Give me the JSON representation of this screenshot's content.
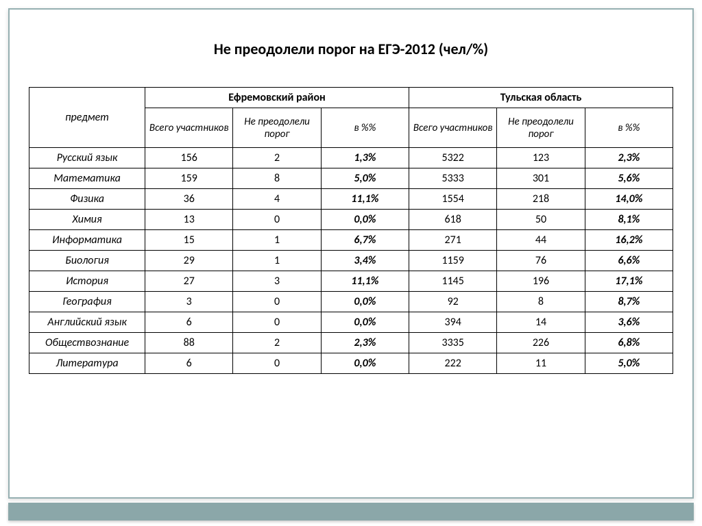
{
  "title": "Не преодолели порог на ЕГЭ-2012 (чел/%)",
  "columns": {
    "subject": "предмет",
    "group1": "Ефремовский район",
    "group2": "Тульская область",
    "total": "Всего участников",
    "failed": "Не преодолели порог",
    "pct": "в %%"
  },
  "rows": [
    {
      "s": "Русский язык",
      "a1": "156",
      "a2": "2",
      "a3": "1,3%",
      "b1": "5322",
      "b2": "123",
      "b3": "2,3%"
    },
    {
      "s": "Математика",
      "a1": "159",
      "a2": "8",
      "a3": "5,0%",
      "b1": "5333",
      "b2": "301",
      "b3": "5,6%"
    },
    {
      "s": "Физика",
      "a1": "36",
      "a2": "4",
      "a3": "11,1%",
      "b1": "1554",
      "b2": "218",
      "b3": "14,0%"
    },
    {
      "s": "Химия",
      "a1": "13",
      "a2": "0",
      "a3": "0,0%",
      "b1": "618",
      "b2": "50",
      "b3": "8,1%"
    },
    {
      "s": "Информатика",
      "a1": "15",
      "a2": "1",
      "a3": "6,7%",
      "b1": "271",
      "b2": "44",
      "b3": "16,2%"
    },
    {
      "s": "Биология",
      "a1": "29",
      "a2": "1",
      "a3": "3,4%",
      "b1": "1159",
      "b2": "76",
      "b3": "6,6%"
    },
    {
      "s": "История",
      "a1": "27",
      "a2": "3",
      "a3": "11,1%",
      "b1": "1145",
      "b2": "196",
      "b3": "17,1%"
    },
    {
      "s": "География",
      "a1": "3",
      "a2": "0",
      "a3": "0,0%",
      "b1": "92",
      "b2": "8",
      "b3": "8,7%"
    },
    {
      "s": "Английский язык",
      "a1": "6",
      "a2": "0",
      "a3": "0,0%",
      "b1": "394",
      "b2": "14",
      "b3": "3,6%"
    },
    {
      "s": "Обществознание",
      "a1": "88",
      "a2": "2",
      "a3": "2,3%",
      "b1": "3335",
      "b2": "226",
      "b3": "6,8%"
    },
    {
      "s": "Литература",
      "a1": "6",
      "a2": "0",
      "a3": "0,0%",
      "b1": "222",
      "b2": "11",
      "b3": "5,0%"
    }
  ],
  "style": {
    "border_color": "#000000",
    "frame_color": "#95afb1",
    "footer_color": "#8ba7a9",
    "title_fontsize": 22,
    "cell_fontsize": 16,
    "font_family": "Calibri"
  }
}
